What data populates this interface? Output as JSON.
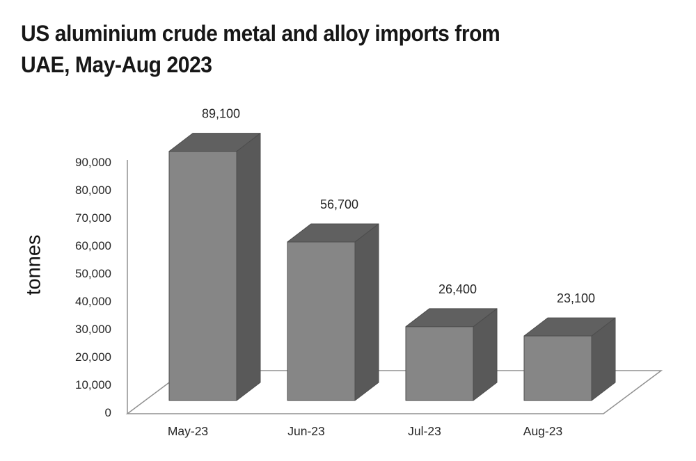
{
  "title": {
    "line1": "US aluminium crude metal and alloy imports from",
    "line2": "UAE, May-Aug 2023"
  },
  "chart_data": {
    "type": "bar",
    "style": "3d-column",
    "title": "US aluminium crude metal and alloy imports from UAE, May-Aug 2023",
    "categories": [
      "May-23",
      "Jun-23",
      "Jul-23",
      "Aug-23"
    ],
    "values": [
      89100,
      56700,
      26400,
      23100
    ],
    "data_labels": [
      "89,100",
      "56,700",
      "26,400",
      "23,100"
    ],
    "xlabel": "",
    "ylabel": "tonnes",
    "ylim": [
      0,
      90000
    ],
    "ytick_step": 10000,
    "ytick_values": [
      0,
      10000,
      20000,
      30000,
      40000,
      50000,
      60000,
      70000,
      80000,
      90000
    ],
    "ytick_labels": [
      "0",
      "10,000",
      "20,000",
      "30,000",
      "40,000",
      "50,000",
      "60,000",
      "70,000",
      "80,000",
      "90,000"
    ],
    "grid": false,
    "legend": "none",
    "colors": {
      "bar_front": "#868686",
      "bar_top": "#606060",
      "bar_side": "#595959",
      "bar_edge": "#4d4d4d",
      "axis_line": "#909090",
      "label_text": "#262626",
      "title_text": "#171717"
    }
  }
}
